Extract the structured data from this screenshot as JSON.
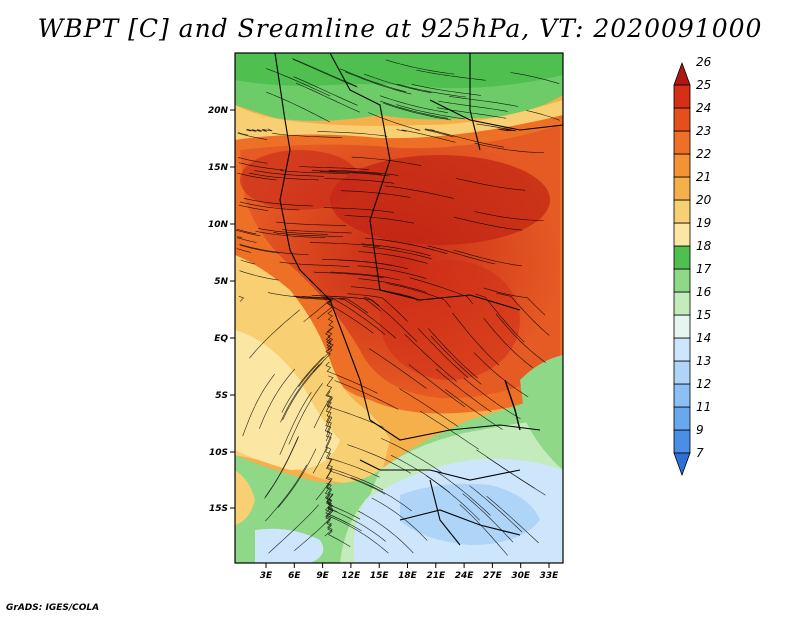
{
  "title": "WBPT [C] and Sreamline at 925hPa, VT: 2020091000",
  "credit": "GrADS: IGES/COLA",
  "map": {
    "lat_ticks": [
      "20N",
      "15N",
      "10N",
      "5N",
      "EQ",
      "5S",
      "10S",
      "15S"
    ],
    "lon_ticks": [
      "3E",
      "6E",
      "9E",
      "12E",
      "15E",
      "18E",
      "21E",
      "24E",
      "27E",
      "30E",
      "33E"
    ]
  },
  "colorbar": {
    "labels": [
      "7",
      "9",
      "11",
      "12",
      "13",
      "14",
      "15",
      "16",
      "17",
      "18",
      "19",
      "20",
      "21",
      "22",
      "23",
      "24",
      "25",
      "26"
    ],
    "colors": [
      "#2e6fd8",
      "#4a8ee6",
      "#6aa8ee",
      "#8cc0f4",
      "#aed4f8",
      "#cde6fb",
      "#e6f5ef",
      "#c3ebbc",
      "#8ed888",
      "#4fbf4f",
      "#fbe6a3",
      "#f8cf72",
      "#f5b04c",
      "#f39334",
      "#ee7026",
      "#e44f1d",
      "#d43018",
      "#b01612"
    ]
  }
}
